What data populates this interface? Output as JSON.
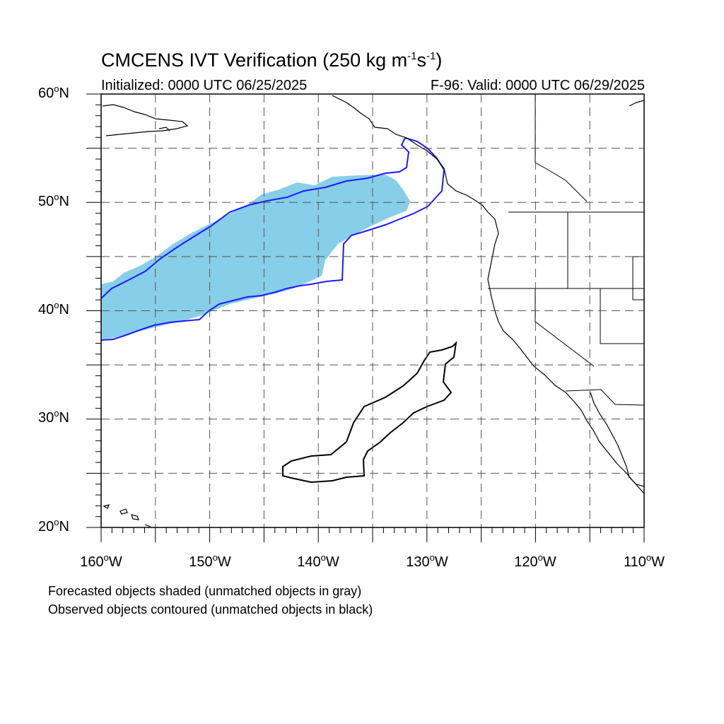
{
  "header": {
    "title_prefix": "CMCENS IVT Verification (250 kg m",
    "title_exp1": "-1",
    "title_mid": "s",
    "title_exp2": "-1",
    "title_suffix": ")",
    "initialized": "Initialized: 0000 UTC 06/25/2025",
    "valid": "F-96: Valid: 0000 UTC 06/29/2025"
  },
  "map": {
    "lon_range": [
      -160,
      -110
    ],
    "lat_range": [
      20,
      60
    ],
    "grid": true,
    "lat_labels": [
      {
        "lat": 60,
        "num": "60",
        "deg": "o",
        "hemi": "N"
      },
      {
        "lat": 50,
        "num": "50",
        "deg": "o",
        "hemi": "N"
      },
      {
        "lat": 40,
        "num": "40",
        "deg": "o",
        "hemi": "N"
      },
      {
        "lat": 30,
        "num": "30",
        "deg": "o",
        "hemi": "N"
      },
      {
        "lat": 20,
        "num": "20",
        "deg": "o",
        "hemi": "N"
      }
    ],
    "lon_labels": [
      {
        "lon": -160,
        "num": "160",
        "deg": "o",
        "hemi": "W"
      },
      {
        "lon": -150,
        "num": "150",
        "deg": "o",
        "hemi": "W"
      },
      {
        "lon": -140,
        "num": "140",
        "deg": "o",
        "hemi": "W"
      },
      {
        "lon": -130,
        "num": "130",
        "deg": "o",
        "hemi": "W"
      },
      {
        "lon": -120,
        "num": "120",
        "deg": "o",
        "hemi": "W"
      },
      {
        "lon": -110,
        "num": "110",
        "deg": "o",
        "hemi": "W"
      }
    ],
    "colors": {
      "forecast_fill": "#87CEE8",
      "observed_matched": "#1a1aff",
      "observed_unmatched": "#000000",
      "coastline": "#000000",
      "grid": "#555555"
    }
  },
  "legend": {
    "line1": "Forecasted objects shaded (unmatched objects in gray)",
    "line2": "Observed objects contoured (unmatched objects in black)"
  }
}
